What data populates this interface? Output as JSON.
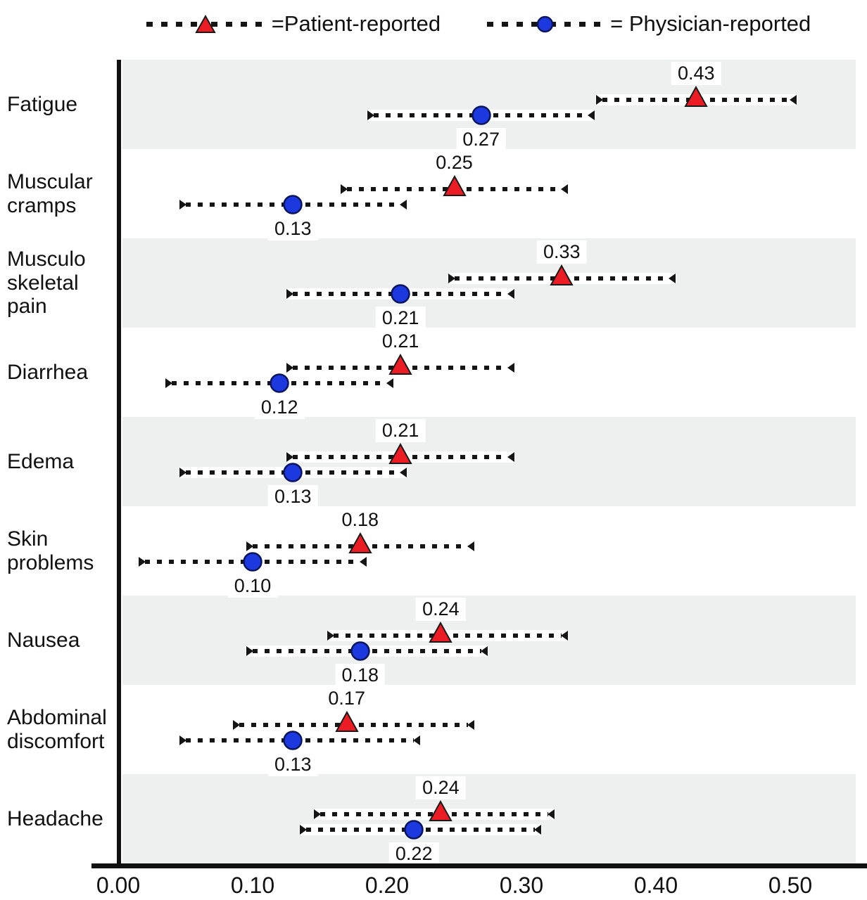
{
  "figure": {
    "legend": [
      {
        "marker": "triangle",
        "label": "=Patient-reported"
      },
      {
        "marker": "circle",
        "label": "= Physician-reported"
      }
    ]
  },
  "chart_data": {
    "type": "scatter",
    "subtype": "horizontal-dot-plot-with-dashed-error-bars",
    "title": "",
    "xlabel": "",
    "ylabel": "",
    "xlim": [
      0.0,
      0.545
    ],
    "grid": false,
    "legend_position": "top",
    "band_fill_alternating": true,
    "colors": {
      "patient_fill": "#ec1c24",
      "marker_outline": "#1a1a1a",
      "physician_fill": "#1c39e0",
      "physician_outline": "#0a1560",
      "band": "#edf0ee",
      "line": "#151515",
      "text": "#111111"
    },
    "x_ticks": [
      {
        "value": 0.0,
        "label": "0.00"
      },
      {
        "value": 0.1,
        "label": "0.10"
      },
      {
        "value": 0.2,
        "label": "0.20"
      },
      {
        "value": 0.3,
        "label": "0.30"
      },
      {
        "value": 0.4,
        "label": "0.40"
      },
      {
        "value": 0.5,
        "label": "0.50"
      }
    ],
    "series_names": [
      "Patient-reported",
      "Physician-reported"
    ],
    "rows": [
      {
        "category": "Fatigue",
        "patient": {
          "value": 0.43,
          "ci_low": 0.36,
          "ci_high": 0.5
        },
        "physician": {
          "value": 0.27,
          "ci_low": 0.19,
          "ci_high": 0.35
        }
      },
      {
        "category": "Muscular cramps",
        "patient": {
          "value": 0.25,
          "ci_low": 0.17,
          "ci_high": 0.33
        },
        "physician": {
          "value": 0.13,
          "ci_low": 0.05,
          "ci_high": 0.21
        }
      },
      {
        "category": "Musculo skeletal pain",
        "patient": {
          "value": 0.33,
          "ci_low": 0.25,
          "ci_high": 0.41
        },
        "physician": {
          "value": 0.21,
          "ci_low": 0.13,
          "ci_high": 0.29
        }
      },
      {
        "category": "Diarrhea",
        "patient": {
          "value": 0.21,
          "ci_low": 0.13,
          "ci_high": 0.29
        },
        "physician": {
          "value": 0.12,
          "ci_low": 0.04,
          "ci_high": 0.2
        }
      },
      {
        "category": "Edema",
        "patient": {
          "value": 0.21,
          "ci_low": 0.13,
          "ci_high": 0.29
        },
        "physician": {
          "value": 0.13,
          "ci_low": 0.05,
          "ci_high": 0.21
        }
      },
      {
        "category": "Skin problems",
        "patient": {
          "value": 0.18,
          "ci_low": 0.1,
          "ci_high": 0.26
        },
        "physician": {
          "value": 0.1,
          "ci_low": 0.02,
          "ci_high": 0.18
        }
      },
      {
        "category": "Nausea",
        "patient": {
          "value": 0.24,
          "ci_low": 0.16,
          "ci_high": 0.33
        },
        "physician": {
          "value": 0.18,
          "ci_low": 0.1,
          "ci_high": 0.27
        }
      },
      {
        "category": "Abdominal discomfort",
        "patient": {
          "value": 0.17,
          "ci_low": 0.09,
          "ci_high": 0.26
        },
        "physician": {
          "value": 0.13,
          "ci_low": 0.05,
          "ci_high": 0.22
        }
      },
      {
        "category": "Headache",
        "patient": {
          "value": 0.24,
          "ci_low": 0.15,
          "ci_high": 0.32
        },
        "physician": {
          "value": 0.22,
          "ci_low": 0.14,
          "ci_high": 0.31
        }
      }
    ]
  }
}
